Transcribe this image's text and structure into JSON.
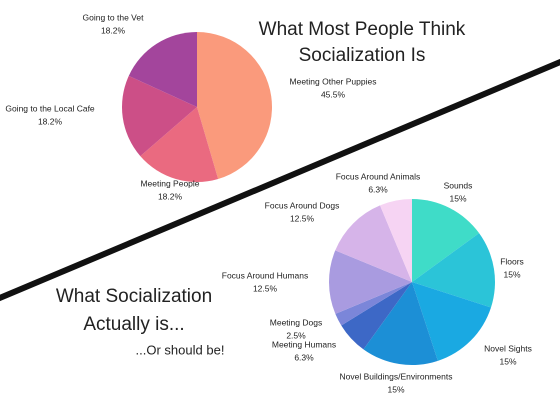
{
  "chart_data": [
    {
      "type": "pie",
      "title": [
        "What Most People Think",
        "Socialization Is"
      ],
      "categories": [
        "Meeting Other Puppies",
        "Meeting People",
        "Going to the Local Cafe",
        "Going to the Vet"
      ],
      "values": [
        45.5,
        18.2,
        18.2,
        18.2
      ],
      "value_labels": [
        "45.5%",
        "18.2%",
        "18.2%",
        "18.2%"
      ],
      "colors": [
        "#fa9a7c",
        "#ea6a80",
        "#cc4f87",
        "#a3459c"
      ]
    },
    {
      "type": "pie",
      "title": [
        "What Socialization",
        "Actually is..."
      ],
      "subtitle": "...Or should be!",
      "categories": [
        "Sounds",
        "Floors",
        "Novel Sights",
        "Novel Buildings/Environments",
        "Meeting Humans",
        "Meeting Dogs",
        "Focus Around Humans",
        "Focus Around Dogs",
        "Focus Around Animals"
      ],
      "values": [
        15,
        15,
        15,
        15,
        6.3,
        2.5,
        12.5,
        12.5,
        6.3
      ],
      "value_labels": [
        "15%",
        "15%",
        "15%",
        "15%",
        "6.3%",
        "2.5%",
        "12.5%",
        "12.5%",
        "6.3%"
      ],
      "colors": [
        "#3fdcc8",
        "#2bc4d8",
        "#1aa9e2",
        "#1c8fd6",
        "#3d68c6",
        "#7b86d9",
        "#a99be0",
        "#d6b4e9",
        "#f6d4f3"
      ]
    }
  ]
}
